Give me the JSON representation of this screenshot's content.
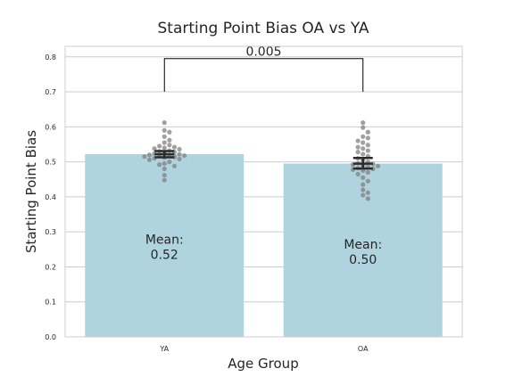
{
  "chart_data": {
    "type": "bar",
    "title": "Starting Point Bias OA vs YA",
    "xlabel": "Age Group",
    "ylabel": "Starting Point Bias",
    "categories": [
      "YA",
      "OA"
    ],
    "values": [
      0.522,
      0.495
    ],
    "error_bars": [
      [
        0.513,
        0.531
      ],
      [
        0.481,
        0.511
      ]
    ],
    "ylim": [
      0,
      0.83
    ],
    "yticks": [
      "0.0",
      "0.1",
      "0.2",
      "0.3",
      "0.4",
      "0.5",
      "0.6",
      "0.7",
      "0.8"
    ],
    "grid": true,
    "colors": {
      "bar": "#b0d4df",
      "points": "#808080",
      "error": "#2b2b2b",
      "grid": "#cccccc"
    },
    "annotations": [
      {
        "category": "YA",
        "text_line1": "Mean:",
        "text_line2": "0.52"
      },
      {
        "category": "OA",
        "text_line1": "Mean:",
        "text_line2": "0.50"
      }
    ],
    "significance": {
      "text": "0.005",
      "from": "YA",
      "to": "OA",
      "y_bottom": 0.7,
      "y_top": 0.795
    },
    "points": [
      [
        0.612,
        0.59,
        0.585,
        0.572,
        0.562,
        0.555,
        0.548,
        0.545,
        0.542,
        0.54,
        0.538,
        0.536,
        0.532,
        0.53,
        0.528,
        0.526,
        0.524,
        0.522,
        0.52,
        0.518,
        0.518,
        0.516,
        0.515,
        0.514,
        0.512,
        0.51,
        0.508,
        0.506,
        0.5,
        0.495,
        0.492,
        0.488,
        0.48,
        0.462,
        0.448
      ],
      [
        0.612,
        0.598,
        0.585,
        0.572,
        0.568,
        0.56,
        0.555,
        0.548,
        0.542,
        0.538,
        0.532,
        0.528,
        0.522,
        0.516,
        0.51,
        0.505,
        0.5,
        0.496,
        0.494,
        0.492,
        0.49,
        0.488,
        0.486,
        0.482,
        0.48,
        0.478,
        0.475,
        0.47,
        0.465,
        0.455,
        0.445,
        0.435,
        0.42,
        0.412,
        0.405,
        0.395
      ]
    ]
  }
}
